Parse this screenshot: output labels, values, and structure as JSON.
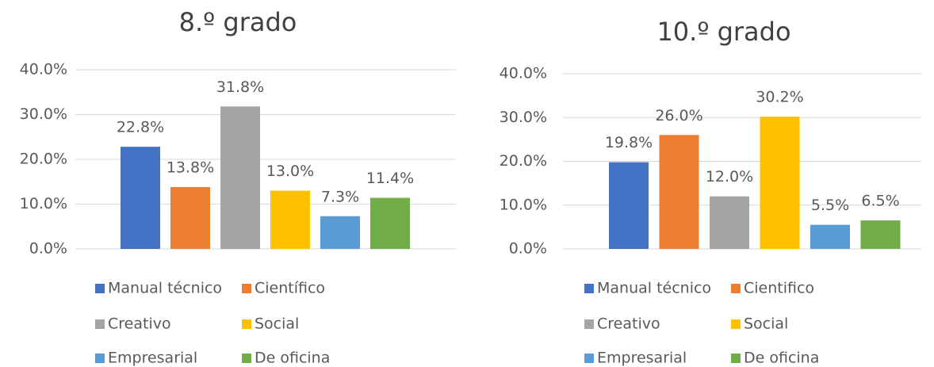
{
  "chart_data": [
    {
      "type": "bar",
      "title": "8.º grado",
      "ylim": [
        0,
        40
      ],
      "yticks": [
        {
          "value": 0,
          "label": "0.0%"
        },
        {
          "value": 10,
          "label": "10.0%"
        },
        {
          "value": 20,
          "label": "20.0%"
        },
        {
          "value": 30,
          "label": "30.0%"
        },
        {
          "value": 40,
          "label": "40.0%"
        }
      ],
      "grid": true,
      "legend": "bottom",
      "series": [
        {
          "name": "Manual técnico",
          "color": "#4472c4",
          "values": [
            22.8
          ],
          "value_labels": [
            "22.8%"
          ]
        },
        {
          "name": "Científico",
          "color": "#ed7d31",
          "values": [
            13.8
          ],
          "value_labels": [
            "13.8%"
          ]
        },
        {
          "name": "Creativo",
          "color": "#a5a5a5",
          "values": [
            31.8
          ],
          "value_labels": [
            "31.8%"
          ]
        },
        {
          "name": "Social",
          "color": "#ffc000",
          "values": [
            13.0
          ],
          "value_labels": [
            "13.0%"
          ]
        },
        {
          "name": "Empresarial",
          "color": "#5b9bd5",
          "values": [
            7.3
          ],
          "value_labels": [
            "7.3%"
          ]
        },
        {
          "name": "De oficina",
          "color": "#70ad47",
          "values": [
            11.4
          ],
          "value_labels": [
            "11.4%"
          ]
        }
      ]
    },
    {
      "type": "bar",
      "title": "10.º grado",
      "ylim": [
        0,
        40
      ],
      "yticks": [
        {
          "value": 0,
          "label": "0.0%"
        },
        {
          "value": 10,
          "label": "10.0%"
        },
        {
          "value": 20,
          "label": "20.0%"
        },
        {
          "value": 30,
          "label": "30.0%"
        },
        {
          "value": 40,
          "label": "40.0%"
        }
      ],
      "grid": true,
      "legend": "bottom",
      "series": [
        {
          "name": "Manual técnico",
          "color": "#4472c4",
          "values": [
            19.8
          ],
          "value_labels": [
            "19.8%"
          ]
        },
        {
          "name": "Cientifico",
          "color": "#ed7d31",
          "values": [
            26.0
          ],
          "value_labels": [
            "26.0%"
          ]
        },
        {
          "name": "Creativo",
          "color": "#a5a5a5",
          "values": [
            12.0
          ],
          "value_labels": [
            "12.0%"
          ]
        },
        {
          "name": "Social",
          "color": "#ffc000",
          "values": [
            30.2
          ],
          "value_labels": [
            "30.2%"
          ]
        },
        {
          "name": "Empresarial",
          "color": "#5b9bd5",
          "values": [
            5.5
          ],
          "value_labels": [
            "5.5%"
          ]
        },
        {
          "name": "De oficina",
          "color": "#70ad47",
          "values": [
            6.5
          ],
          "value_labels": [
            "6.5%"
          ]
        }
      ]
    }
  ]
}
